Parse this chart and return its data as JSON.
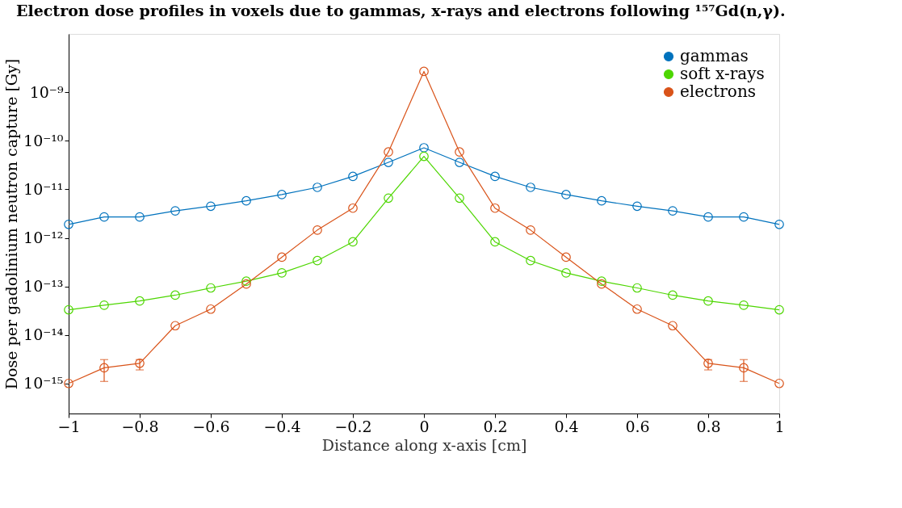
{
  "chart_data": {
    "type": "line",
    "title": "Electron dose profiles in voxels due to gammas, x-rays and electrons following ¹⁵⁷Gd(n,γ).",
    "xlabel": "Distance along x-axis [cm]",
    "ylabel": "Dose per gadolinium neutron capture [Gy]",
    "x": [
      -1,
      -0.9,
      -0.8,
      -0.7,
      -0.6,
      -0.5,
      -0.4,
      -0.3,
      -0.2,
      -0.1,
      0,
      0.1,
      0.2,
      0.3,
      0.4,
      0.5,
      0.6,
      0.7,
      0.8,
      0.9,
      1
    ],
    "series": [
      {
        "name": "gammas",
        "color": "#0072bd",
        "values": [
          1.9e-12,
          2.7e-12,
          2.7e-12,
          3.6e-12,
          4.5e-12,
          5.8e-12,
          7.8e-12,
          1.1e-11,
          1.85e-11,
          3.6e-11,
          7.2e-11,
          3.6e-11,
          1.85e-11,
          1.1e-11,
          7.8e-12,
          5.8e-12,
          4.5e-12,
          3.6e-12,
          2.7e-12,
          2.7e-12,
          1.9e-12
        ]
      },
      {
        "name": "soft x-rays",
        "color": "#4dd600",
        "values": [
          3.3e-14,
          4.1e-14,
          5e-14,
          6.6e-14,
          9.3e-14,
          1.28e-13,
          1.9e-13,
          3.4e-13,
          8.3e-13,
          6.6e-12,
          4.8e-11,
          6.6e-12,
          8.3e-13,
          3.4e-13,
          1.9e-13,
          1.28e-13,
          9.3e-14,
          6.6e-14,
          5e-14,
          4.1e-14,
          3.3e-14
        ]
      },
      {
        "name": "electrons",
        "color": "#d95319",
        "values": [
          1e-15,
          2.1e-15,
          2.6e-15,
          1.55e-14,
          3.4e-14,
          1.12e-13,
          4e-13,
          1.45e-12,
          4.1e-12,
          5.9e-11,
          2.7e-09,
          5.9e-11,
          4.1e-12,
          1.45e-12,
          4e-13,
          1.12e-13,
          3.4e-14,
          1.55e-14,
          2.6e-15,
          2.1e-15,
          1e-15
        ],
        "errors": [
          null,
          [
            1.1e-15,
            3.1e-15
          ],
          [
            1.9e-15,
            3.1e-15
          ],
          null,
          null,
          null,
          null,
          null,
          null,
          null,
          null,
          null,
          null,
          null,
          null,
          null,
          null,
          null,
          [
            1.9e-15,
            3.1e-15
          ],
          [
            1.1e-15,
            3.1e-15
          ],
          null
        ]
      }
    ],
    "log": "y",
    "marker": "circle",
    "line_style": "solid",
    "grid": false,
    "legend": "top right",
    "xlim": [
      -1,
      1
    ],
    "xticks": [
      {
        "value": -1,
        "label": "−1"
      },
      {
        "value": -0.8,
        "label": "−0.8"
      },
      {
        "value": -0.6,
        "label": "−0.6"
      },
      {
        "value": -0.4,
        "label": "−0.4"
      },
      {
        "value": -0.2,
        "label": "−0.2"
      },
      0,
      0.2,
      0.4,
      0.6,
      0.8,
      1
    ],
    "ylim": [
      2.4e-16,
      1.6e-08
    ],
    "yticks": [
      {
        "value": 1e-15,
        "label": "10⁻¹⁵"
      },
      {
        "value": 1e-14,
        "label": "10⁻¹⁴"
      },
      {
        "value": 1e-13,
        "label": "10⁻¹³"
      },
      {
        "value": 1e-12,
        "label": "10⁻¹²"
      },
      {
        "value": 1e-11,
        "label": "10⁻¹¹"
      },
      {
        "value": 1e-10,
        "label": "10⁻¹⁰"
      },
      {
        "value": 1e-09,
        "label": "10⁻⁹"
      }
    ]
  }
}
